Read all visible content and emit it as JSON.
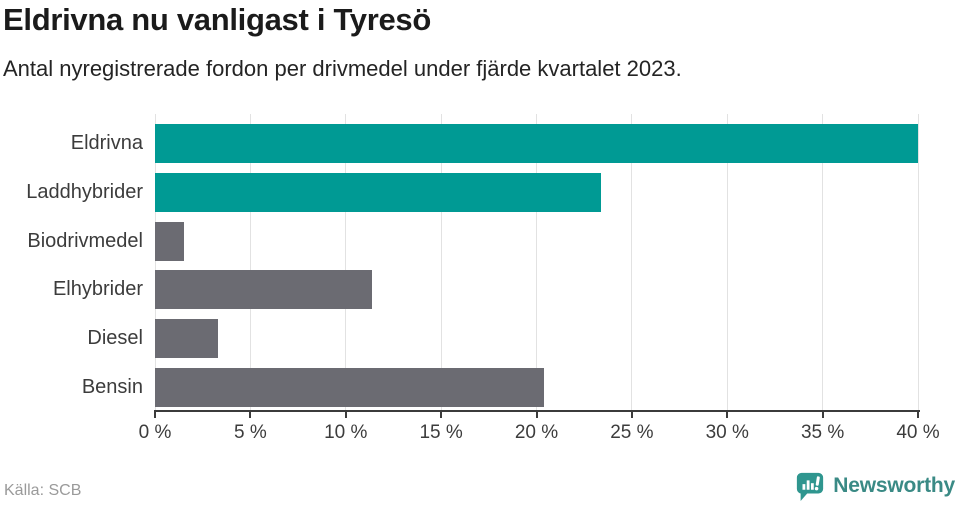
{
  "header": {
    "title": "Eldrivna nu vanligast i Tyresö",
    "subtitle": "Antal nyregistrerade fordon per drivmedel under fjärde kvartalet 2023."
  },
  "chart_data": {
    "type": "bar",
    "orientation": "horizontal",
    "title": "Eldrivna nu vanligast i Tyresö",
    "subtitle": "Antal nyregistrerade fordon per drivmedel under fjärde kvartalet 2023.",
    "categories": [
      "Eldrivna",
      "Laddhybrider",
      "Biodrivmedel",
      "Elhybrider",
      "Diesel",
      "Bensin"
    ],
    "values": [
      40.0,
      23.4,
      1.5,
      11.4,
      3.3,
      20.4
    ],
    "unit": "%",
    "bar_colors": [
      "#009A94",
      "#009A94",
      "#6B6B72",
      "#6B6B72",
      "#6B6B72",
      "#6B6B72"
    ],
    "xlim": [
      0,
      40
    ],
    "x_ticks": [
      0,
      5,
      10,
      15,
      20,
      25,
      30,
      35,
      40
    ],
    "x_tick_labels": [
      "0 %",
      "5 %",
      "10 %",
      "15 %",
      "20 %",
      "25 %",
      "30 %",
      "35 %",
      "40 %"
    ],
    "grid": true,
    "legend": false,
    "ylabel": "",
    "xlabel": ""
  },
  "footer": {
    "source": "Källa: SCB",
    "brand": "Newsworthy"
  },
  "colors": {
    "accent_teal": "#009A94",
    "muted_gray_bar": "#6B6B72",
    "gridline": "#E2E2E2",
    "axis": "#3B3B3B",
    "title_text": "#1B1B1B",
    "label_text": "#3C3C3C",
    "source_text": "#9A9A9A",
    "brand_icon": "#2F968F",
    "brand_text": "#3A8A85"
  }
}
